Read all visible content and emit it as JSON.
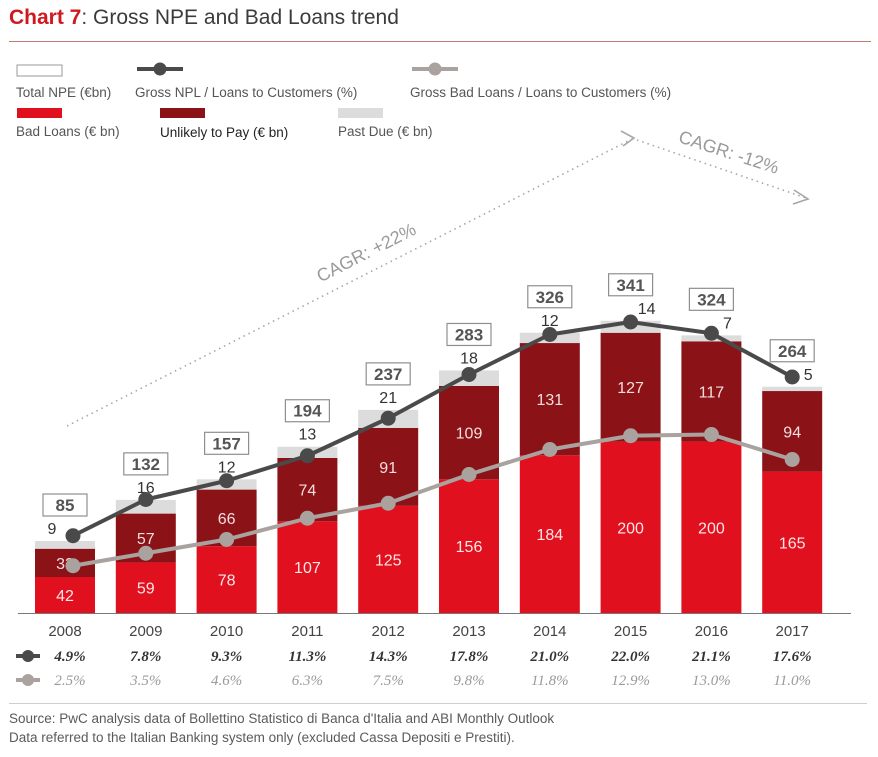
{
  "header": {
    "title_bold": "Chart 7",
    "title_rest": ": Gross NPE and Bad Loans trend"
  },
  "colors": {
    "bad_loans": "#e0101e",
    "utp": "#8b1318",
    "past_due": "#dcdcdc",
    "npl_line": "#4a4a4a",
    "bad_line": "#a9a29e",
    "cagr": "#a7a7a7"
  },
  "chart_data": {
    "type": "bar",
    "stacked": true,
    "categories": [
      "2008",
      "2009",
      "2010",
      "2011",
      "2012",
      "2013",
      "2014",
      "2015",
      "2016",
      "2017"
    ],
    "series": [
      {
        "name": "Bad Loans (€ bn)",
        "values": [
          42,
          59,
          78,
          107,
          125,
          156,
          184,
          200,
          200,
          165
        ]
      },
      {
        "name": "Unlikely to Pay (€ bn)",
        "values": [
          33,
          57,
          66,
          74,
          91,
          109,
          131,
          127,
          117,
          94
        ]
      },
      {
        "name": "Past Due (€ bn)",
        "values": [
          9,
          16,
          12,
          13,
          21,
          18,
          12,
          14,
          7,
          5
        ]
      }
    ],
    "totals": {
      "name": "Total NPE (€bn)",
      "values": [
        85,
        132,
        157,
        194,
        237,
        283,
        326,
        341,
        324,
        264
      ]
    },
    "lines": [
      {
        "name": "Gross NPL / Loans to Customers (%)",
        "values": [
          4.9,
          7.8,
          9.3,
          11.3,
          14.3,
          17.8,
          21.0,
          22.0,
          21.1,
          17.6
        ],
        "labels": [
          "4.9%",
          "7.8%",
          "9.3%",
          "11.3%",
          "14.3%",
          "17.8%",
          "21.0%",
          "22.0%",
          "21.1%",
          "17.6%"
        ]
      },
      {
        "name": "Gross Bad Loans / Loans to Customers (%)",
        "values": [
          2.5,
          3.5,
          4.6,
          6.3,
          7.5,
          9.8,
          11.8,
          12.9,
          13.0,
          11.0
        ],
        "labels": [
          "2.5%",
          "3.5%",
          "4.6%",
          "6.3%",
          "7.5%",
          "9.8%",
          "11.8%",
          "12.9%",
          "13.0%",
          "11.0%"
        ]
      }
    ],
    "annotations": [
      "CAGR: +22%",
      "CAGR: -12%"
    ],
    "legend_position": "top-left",
    "grid": false
  },
  "footer": {
    "source_line1": "Source: PwC analysis data of Bollettino Statistico di Banca d'Italia and ABI Monthly Outlook",
    "source_line2": "Data referred to the Italian Banking system only (excluded Cassa Depositi e Prestiti)."
  }
}
